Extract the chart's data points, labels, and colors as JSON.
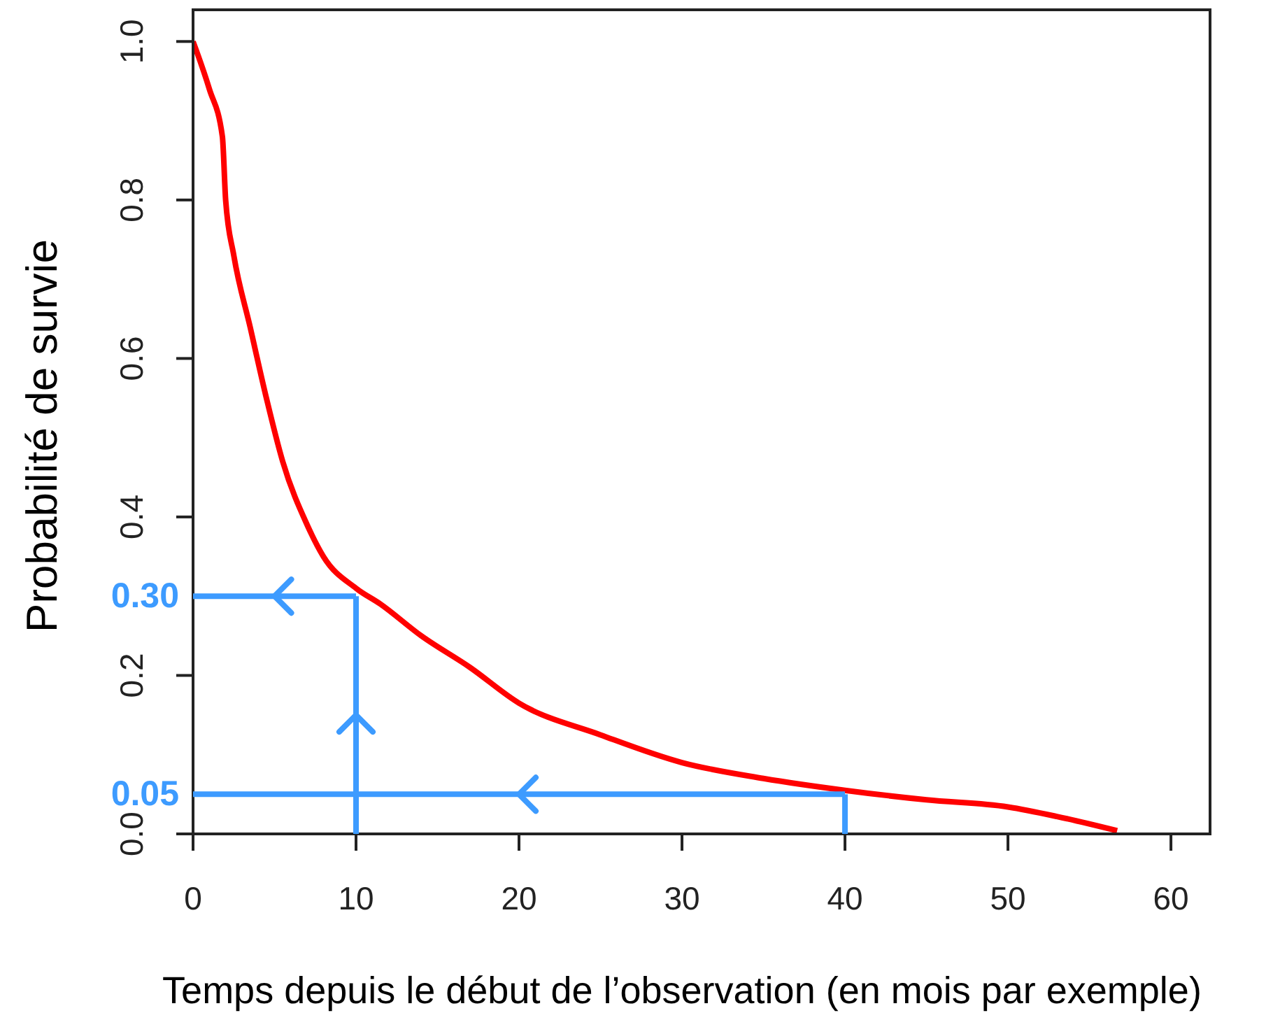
{
  "chart_data": {
    "type": "line",
    "xlabel": "Temps depuis le début de l’observation (en mois par exemple)",
    "ylabel": "Probabilité de survie",
    "x": [
      0,
      1,
      1.8,
      2,
      2.5,
      3.5,
      4.5,
      5.5,
      7,
      8,
      10,
      11.5,
      14,
      17,
      20,
      25,
      30,
      35,
      40,
      45,
      50,
      53,
      56.7
    ],
    "series": [
      {
        "color": "#ff0000",
        "values": [
          1.0,
          0.94,
          0.88,
          0.8,
          0.73,
          0.64,
          0.55,
          0.47,
          0.39,
          0.35,
          0.31,
          0.29,
          0.25,
          0.21,
          0.165,
          0.125,
          0.09,
          0.07,
          0.055,
          0.043,
          0.034,
          0.022,
          0.004
        ]
      }
    ],
    "xlim": [
      0,
      62.4
    ],
    "xticks": [
      0,
      10,
      20,
      30,
      40,
      50,
      60
    ],
    "ylim": [
      0,
      1.04
    ],
    "yticks": [
      {
        "value": 0,
        "label": "0.0"
      },
      0.2,
      0.4,
      0.6,
      0.8,
      {
        "value": 1,
        "label": "1.0"
      }
    ],
    "annotations": [
      {
        "text": "0.30",
        "x": 10,
        "y": 0.3
      },
      {
        "text": "0.05",
        "x": 40,
        "y": 0.05
      }
    ]
  }
}
